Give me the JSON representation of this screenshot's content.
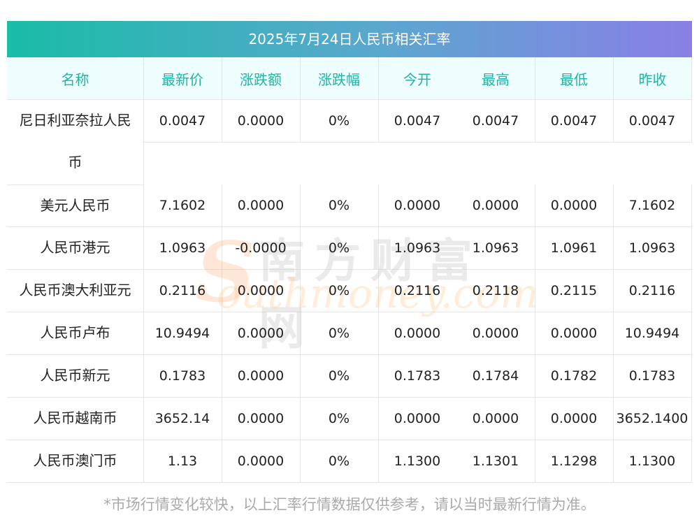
{
  "title": "2025年7月24日人民币相关汇率",
  "headers": [
    "名称",
    "最新价",
    "涨跌额",
    "涨跌幅",
    "今开",
    "最高",
    "最低",
    "昨收"
  ],
  "rows": [
    {
      "name_line1": "尼日利亚奈拉人民",
      "name_line2": "币",
      "cells": [
        "0.0047",
        "0.0000",
        "0%",
        "0.0047",
        "0.0047",
        "0.0047",
        "0.0047"
      ]
    },
    {
      "name": "美元人民币",
      "cells": [
        "7.1602",
        "0.0000",
        "0%",
        "0.0000",
        "0.0000",
        "0.0000",
        "7.1602"
      ]
    },
    {
      "name": "人民币港元",
      "cells": [
        "1.0963",
        "-0.0000",
        "0%",
        "1.0963",
        "1.0963",
        "1.0961",
        "1.0963"
      ]
    },
    {
      "name": "人民币澳大利亚元",
      "cells": [
        "0.2116",
        "0.0000",
        "0%",
        "0.2116",
        "0.2118",
        "0.2115",
        "0.2116"
      ]
    },
    {
      "name": "人民币卢布",
      "cells": [
        "10.9494",
        "0.0000",
        "0%",
        "0.0000",
        "0.0000",
        "0.0000",
        "10.9494"
      ]
    },
    {
      "name": "人民币新元",
      "cells": [
        "0.1783",
        "0.0000",
        "0%",
        "0.1783",
        "0.1784",
        "0.1782",
        "0.1783"
      ]
    },
    {
      "name": "人民币越南币",
      "cells": [
        "3652.14",
        "0.0000",
        "0%",
        "0.0000",
        "0.0000",
        "0.0000",
        "3652.1400"
      ]
    },
    {
      "name": "人民币澳门币",
      "cells": [
        "1.13",
        "0.0000",
        "0%",
        "1.1300",
        "1.1301",
        "1.1298",
        "1.1300"
      ]
    }
  ],
  "footnote": "*市场行情变化较快，以上汇率行情数据仅供参考，请以当时最新行情为准。",
  "watermark": {
    "cn": "南方财富网",
    "en": "outhmoney.com",
    "letter": "S"
  },
  "colors": {
    "accent": "#22b3a6",
    "header_bg": "#eefdfd",
    "gradient_start": "#19bca7",
    "gradient_end": "#8a7fe6"
  }
}
